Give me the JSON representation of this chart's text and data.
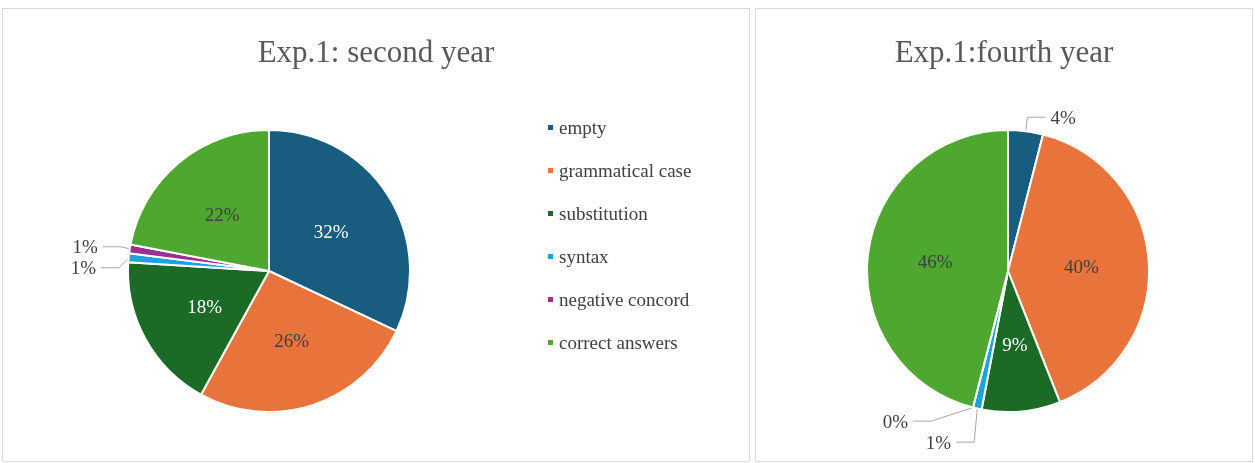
{
  "chart_data": [
    {
      "type": "pie",
      "title": "Exp.1: second year",
      "categories": [
        "empty",
        "grammatical case",
        "substitution",
        "syntax",
        "negative concord",
        "correct answers"
      ],
      "values": [
        32,
        26,
        18,
        1,
        1,
        22
      ],
      "value_labels": [
        "32%",
        "26%",
        "18%",
        "1%",
        "1%",
        "22%"
      ],
      "colors": [
        "#185c80",
        "#e8743b",
        "#1b6b27",
        "#1aa3dc",
        "#9b2f94",
        "#4ea72e"
      ],
      "legend": "right"
    },
    {
      "type": "pie",
      "title": "Exp.1:fourth year",
      "categories": [
        null,
        null,
        null,
        null,
        null,
        null
      ],
      "values": [
        4,
        40,
        9,
        1,
        0,
        46
      ],
      "value_labels": [
        "4%",
        "40%",
        "9%",
        "1%",
        "0%",
        "46%"
      ],
      "colors": [
        "#185c80",
        "#e8743b",
        "#1b6b27",
        "#1aa3dc",
        "#9b2f94",
        "#4ea72e"
      ]
    }
  ]
}
